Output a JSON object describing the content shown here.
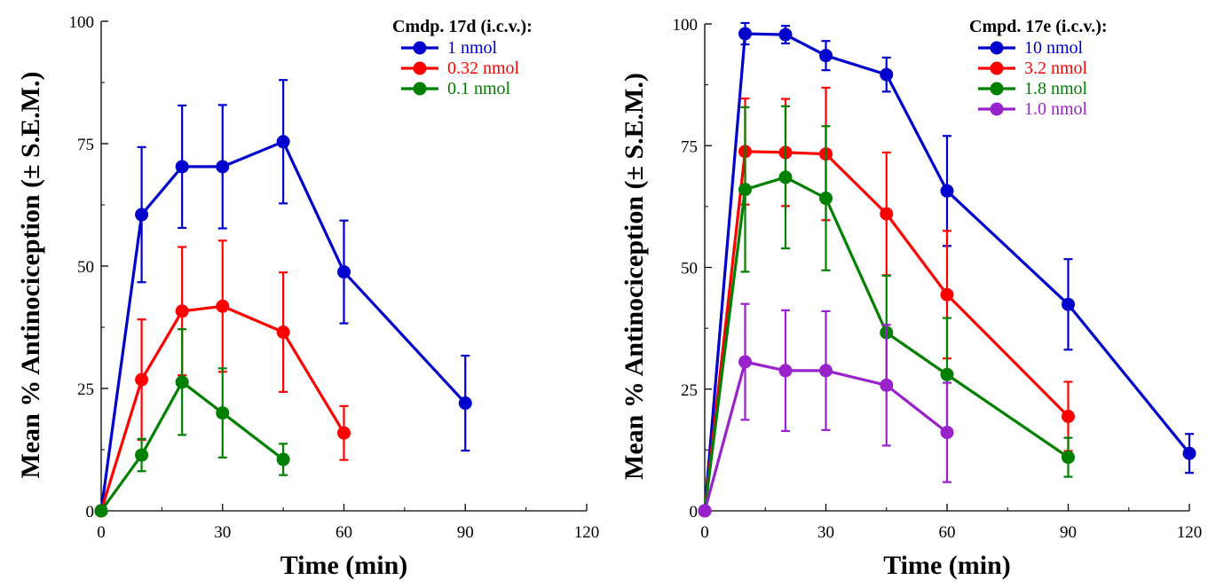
{
  "chart_data": [
    {
      "type": "line",
      "xlabel": "Time (min)",
      "ylabel": "Mean % Antinociception (± S.E.M.)",
      "xlim": [
        0,
        120
      ],
      "ylim": [
        0,
        100
      ],
      "xticks": [
        "0",
        "30",
        "60",
        "90",
        "120"
      ],
      "yticks": [
        "0",
        "25",
        "50",
        "75",
        "100"
      ],
      "grid": false,
      "legend_title": "Cmdp. 17d (i.c.v.):",
      "legend_position": "top-right",
      "series": [
        {
          "name": "1 nmol",
          "color": "#0000cc",
          "x": [
            0,
            10,
            20,
            30,
            45,
            60,
            90
          ],
          "y": [
            0,
            60.5,
            70.3,
            70.3,
            75.4,
            48.8,
            22.0
          ],
          "err": [
            0,
            13.8,
            12.5,
            12.6,
            12.6,
            10.5,
            9.7
          ]
        },
        {
          "name": "0.32 nmol",
          "color": "#ff0000",
          "x": [
            0,
            10,
            20,
            30,
            45,
            60
          ],
          "y": [
            0,
            26.8,
            40.8,
            41.8,
            36.5,
            15.9
          ],
          "err": [
            0,
            12.3,
            13.1,
            13.4,
            12.2,
            5.5
          ]
        },
        {
          "name": "0.1 nmol",
          "color": "#008000",
          "x": [
            0,
            10,
            20,
            30,
            45
          ],
          "y": [
            0,
            11.4,
            26.3,
            20.0,
            10.5
          ],
          "err": [
            0,
            3.3,
            10.8,
            9.1,
            3.2
          ]
        }
      ]
    },
    {
      "type": "line",
      "xlabel": "Time (min)",
      "ylabel": "Mean % Antinociception (± S.E.M.)",
      "xlim": [
        0,
        120
      ],
      "ylim": [
        0,
        100
      ],
      "xticks": [
        "0",
        "30",
        "60",
        "90",
        "120"
      ],
      "yticks": [
        "0",
        "25",
        "50",
        "75",
        "100"
      ],
      "grid": false,
      "legend_title": "Cmpd. 17e (i.c.v.):",
      "legend_position": "top-right",
      "series": [
        {
          "name": "10 nmol",
          "color": "#0000cc",
          "x": [
            0,
            10,
            20,
            30,
            45,
            60,
            90,
            120
          ],
          "y": [
            0,
            98.0,
            97.8,
            93.5,
            89.6,
            65.7,
            42.4,
            11.8
          ],
          "err": [
            0,
            2.2,
            1.8,
            3.0,
            3.5,
            11.3,
            9.3,
            4.0
          ]
        },
        {
          "name": "3.2 nmol",
          "color": "#ff0000",
          "x": [
            0,
            10,
            20,
            30,
            45,
            60,
            90
          ],
          "y": [
            0,
            73.8,
            73.6,
            73.3,
            61.0,
            44.4,
            19.4
          ],
          "err": [
            0,
            10.9,
            11.0,
            13.6,
            12.6,
            13.1,
            7.1
          ]
        },
        {
          "name": "1.8 nmol",
          "color": "#008000",
          "x": [
            0,
            10,
            20,
            30,
            45,
            60,
            90
          ],
          "y": [
            0,
            66.0,
            68.5,
            64.2,
            36.6,
            28.0,
            11.0
          ],
          "err": [
            0,
            16.9,
            14.6,
            14.8,
            11.7,
            11.6,
            4.0
          ]
        },
        {
          "name": "1.0 nmol",
          "color": "#9922cc",
          "x": [
            0,
            10,
            20,
            30,
            45,
            60
          ],
          "y": [
            0,
            30.6,
            28.8,
            28.8,
            25.8,
            16.1
          ],
          "err": [
            0,
            11.9,
            12.4,
            12.2,
            12.4,
            10.2
          ]
        }
      ]
    }
  ]
}
